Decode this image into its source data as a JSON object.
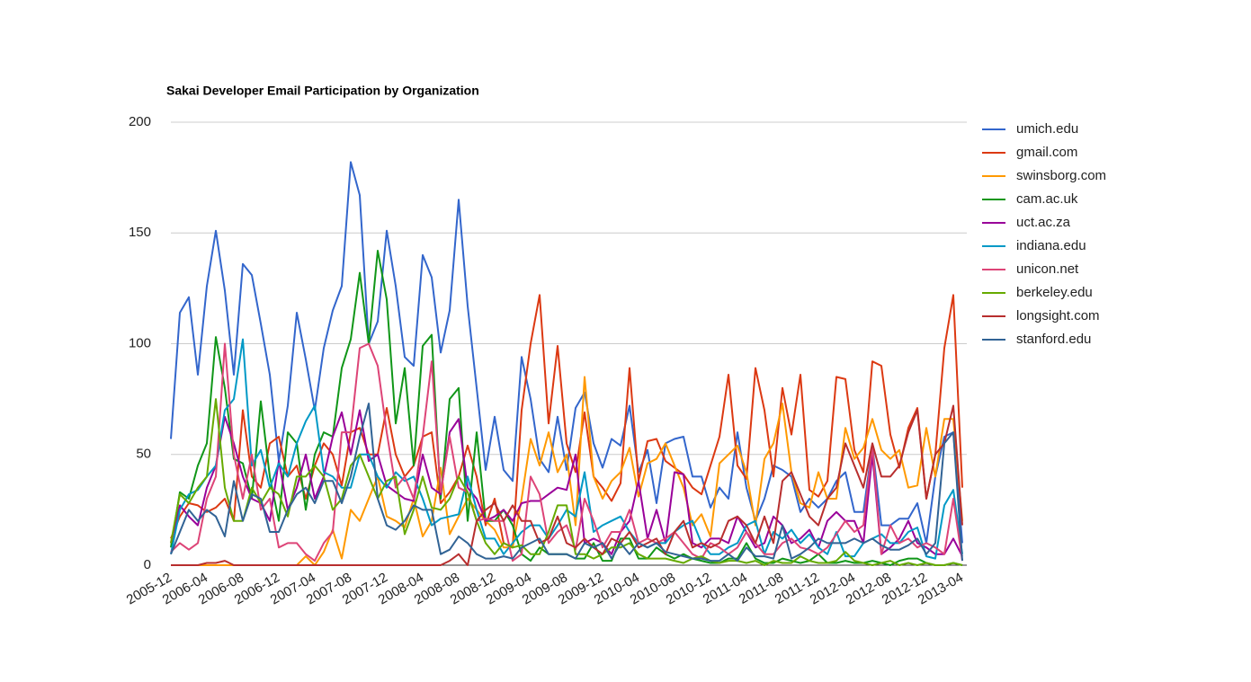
{
  "chart_data": {
    "type": "line",
    "title": "Sakai Developer Email Participation by Organization",
    "categories": [
      "2005-12",
      null,
      null,
      null,
      "2006-04",
      null,
      null,
      null,
      "2006-08",
      null,
      null,
      null,
      "2006-12",
      null,
      null,
      null,
      "2007-04",
      null,
      null,
      null,
      "2007-08",
      null,
      null,
      null,
      "2007-12",
      null,
      null,
      null,
      "2008-04",
      null,
      null,
      null,
      "2008-08",
      null,
      null,
      null,
      "2008-12",
      null,
      null,
      null,
      "2009-04",
      null,
      null,
      null,
      "2009-08",
      null,
      null,
      null,
      "2009-12",
      null,
      null,
      null,
      "2010-04",
      null,
      null,
      null,
      "2010-08",
      null,
      null,
      null,
      "2010-12",
      null,
      null,
      null,
      "2011-04",
      null,
      null,
      null,
      "2011-08",
      null,
      null,
      null,
      "2011-12",
      null,
      null,
      null,
      "2012-04",
      null,
      null,
      null,
      "2012-08",
      null,
      null,
      null,
      "2012-12",
      null,
      null,
      null,
      "2013-04"
    ],
    "ylim": [
      0,
      200
    ],
    "yticks": [
      0,
      50,
      100,
      150,
      200
    ],
    "grid": true,
    "legend": "right",
    "series": [
      {
        "name": "umich.edu",
        "color": "#3366cc",
        "values": [
          57,
          114,
          121,
          86,
          126,
          151,
          124,
          86,
          136,
          131,
          109,
          86,
          47,
          72,
          114,
          93,
          70,
          98,
          115,
          126,
          182,
          167,
          100,
          110,
          151,
          126,
          94,
          90,
          140,
          130,
          96,
          115,
          165,
          117,
          80,
          43,
          67,
          43,
          38,
          94,
          75,
          48,
          42,
          67,
          43,
          71,
          78,
          55,
          44,
          57,
          54,
          72,
          42,
          52,
          28,
          55,
          57,
          58,
          40,
          40,
          26,
          35,
          30,
          60,
          35,
          20,
          30,
          45,
          43,
          40,
          24,
          30,
          26,
          30,
          38,
          42,
          24,
          24,
          54,
          18,
          18,
          21,
          21,
          28,
          10,
          40,
          58,
          60,
          10
        ]
      },
      {
        "name": "gmail.com",
        "color": "#dc3912",
        "values": [
          12,
          22,
          28,
          27,
          24,
          26,
          30,
          20,
          70,
          40,
          35,
          55,
          58,
          40,
          45,
          30,
          45,
          55,
          50,
          36,
          60,
          62,
          50,
          50,
          71,
          50,
          40,
          45,
          58,
          60,
          28,
          33,
          40,
          54,
          40,
          18,
          30,
          10,
          8,
          70,
          100,
          122,
          64,
          99,
          55,
          42,
          69,
          40,
          35,
          29,
          37,
          89,
          38,
          56,
          57,
          47,
          44,
          41,
          35,
          32,
          45,
          58,
          86,
          45,
          39,
          89,
          70,
          40,
          80,
          59,
          86,
          34,
          31,
          38,
          85,
          84,
          52,
          42,
          92,
          90,
          59,
          44,
          62,
          71,
          30,
          50,
          98,
          122,
          35
        ]
      },
      {
        "name": "swinsborg.com",
        "color": "#ff9900",
        "values": [
          0,
          0,
          0,
          0,
          0,
          0,
          0,
          0,
          0,
          0,
          0,
          0,
          0,
          0,
          0,
          4,
          0,
          6,
          16,
          3,
          25,
          20,
          30,
          40,
          22,
          20,
          17,
          30,
          13,
          20,
          44,
          14,
          22,
          30,
          25,
          20,
          16,
          8,
          8,
          30,
          57,
          45,
          60,
          42,
          50,
          18,
          85,
          40,
          30,
          38,
          42,
          53,
          31,
          46,
          48,
          55,
          45,
          35,
          18,
          23,
          13,
          46,
          50,
          54,
          42,
          18,
          48,
          55,
          73,
          42,
          28,
          26,
          42,
          30,
          30,
          62,
          48,
          53,
          66,
          52,
          48,
          52,
          35,
          36,
          62,
          40,
          66,
          66,
          20
        ]
      },
      {
        "name": "cam.ac.uk",
        "color": "#109618",
        "values": [
          8,
          33,
          30,
          45,
          55,
          103,
          80,
          48,
          46,
          30,
          74,
          40,
          20,
          60,
          55,
          25,
          50,
          60,
          58,
          89,
          102,
          132,
          100,
          142,
          120,
          64,
          89,
          45,
          99,
          104,
          30,
          75,
          80,
          20,
          60,
          20,
          20,
          25,
          18,
          5,
          2,
          8,
          5,
          5,
          5,
          3,
          3,
          10,
          2,
          2,
          12,
          12,
          3,
          3,
          8,
          5,
          3,
          5,
          3,
          2,
          1,
          1,
          3,
          3,
          10,
          3,
          1,
          1,
          3,
          2,
          1,
          2,
          5,
          1,
          1,
          2,
          1,
          1,
          2,
          1,
          0,
          2,
          3,
          3,
          1,
          0,
          0,
          1,
          0
        ]
      },
      {
        "name": "uct.ac.za",
        "color": "#990099",
        "values": [
          10,
          27,
          22,
          18,
          35,
          45,
          67,
          55,
          40,
          30,
          28,
          20,
          47,
          25,
          35,
          50,
          30,
          40,
          58,
          69,
          50,
          70,
          47,
          50,
          36,
          33,
          30,
          29,
          50,
          35,
          32,
          60,
          66,
          35,
          30,
          20,
          22,
          25,
          20,
          28,
          29,
          29,
          32,
          35,
          34,
          50,
          10,
          12,
          10,
          5,
          15,
          20,
          38,
          12,
          25,
          10,
          42,
          41,
          10,
          8,
          12,
          12,
          10,
          22,
          15,
          8,
          10,
          22,
          18,
          10,
          12,
          16,
          8,
          20,
          24,
          20,
          20,
          10,
          50,
          5,
          8,
          12,
          20,
          10,
          8,
          5,
          5,
          12,
          4
        ]
      },
      {
        "name": "indiana.edu",
        "color": "#0099c6",
        "values": [
          5,
          25,
          32,
          34,
          40,
          45,
          70,
          75,
          102,
          45,
          52,
          35,
          46,
          40,
          55,
          65,
          72,
          42,
          40,
          35,
          35,
          50,
          50,
          40,
          35,
          42,
          38,
          40,
          30,
          18,
          21,
          22,
          23,
          40,
          25,
          12,
          12,
          5,
          10,
          15,
          18,
          18,
          12,
          18,
          25,
          22,
          42,
          15,
          18,
          20,
          22,
          15,
          10,
          8,
          10,
          10,
          15,
          18,
          20,
          10,
          5,
          5,
          8,
          10,
          18,
          20,
          5,
          15,
          12,
          16,
          10,
          14,
          8,
          5,
          15,
          4,
          4,
          10,
          12,
          14,
          10,
          10,
          15,
          17,
          4,
          3,
          27,
          34,
          5
        ]
      },
      {
        "name": "unicon.net",
        "color": "#dd4477",
        "values": [
          6,
          10,
          7,
          10,
          30,
          40,
          100,
          50,
          30,
          50,
          25,
          30,
          8,
          10,
          10,
          5,
          2,
          10,
          15,
          60,
          60,
          98,
          100,
          90,
          60,
          35,
          40,
          30,
          58,
          92,
          33,
          58,
          35,
          33,
          20,
          21,
          20,
          20,
          2,
          5,
          40,
          32,
          10,
          15,
          18,
          7,
          30,
          20,
          8,
          15,
          15,
          25,
          10,
          12,
          10,
          12,
          15,
          10,
          5,
          3,
          10,
          8,
          5,
          8,
          15,
          10,
          5,
          5,
          10,
          12,
          8,
          7,
          5,
          8,
          14,
          20,
          15,
          18,
          54,
          5,
          18,
          10,
          12,
          8,
          10,
          8,
          5,
          30,
          2
        ]
      },
      {
        "name": "berkeley.edu",
        "color": "#66aa00",
        "values": [
          10,
          32,
          28,
          35,
          40,
          75,
          35,
          20,
          20,
          35,
          28,
          35,
          32,
          22,
          40,
          40,
          45,
          40,
          25,
          30,
          45,
          50,
          40,
          30,
          38,
          40,
          14,
          25,
          40,
          26,
          25,
          30,
          40,
          33,
          20,
          10,
          5,
          10,
          8,
          9,
          5,
          5,
          15,
          27,
          27,
          5,
          5,
          3,
          5,
          8,
          8,
          10,
          5,
          3,
          3,
          3,
          2,
          1,
          3,
          4,
          2,
          1,
          2,
          2,
          1,
          2,
          0,
          2,
          1,
          1,
          4,
          2,
          1,
          1,
          2,
          6,
          2,
          1,
          0,
          1,
          2,
          0,
          1,
          0,
          1,
          0,
          0,
          1,
          0
        ]
      },
      {
        "name": "longsight.com",
        "color": "#b82e2e",
        "values": [
          0,
          0,
          0,
          0,
          1,
          1,
          2,
          0,
          0,
          0,
          0,
          0,
          0,
          0,
          0,
          0,
          0,
          0,
          0,
          0,
          0,
          0,
          0,
          0,
          0,
          0,
          0,
          0,
          0,
          0,
          0,
          2,
          5,
          0,
          20,
          25,
          28,
          20,
          27,
          20,
          20,
          10,
          12,
          22,
          10,
          8,
          12,
          8,
          5,
          12,
          10,
          15,
          8,
          10,
          12,
          5,
          15,
          20,
          8,
          10,
          8,
          10,
          20,
          22,
          18,
          10,
          22,
          10,
          38,
          42,
          32,
          22,
          18,
          30,
          35,
          55,
          45,
          35,
          55,
          40,
          40,
          45,
          60,
          70,
          30,
          50,
          55,
          72,
          18
        ]
      },
      {
        "name": "stanford.edu",
        "color": "#316395",
        "values": [
          5,
          15,
          25,
          20,
          25,
          22,
          13,
          38,
          20,
          32,
          30,
          15,
          15,
          25,
          32,
          35,
          28,
          38,
          38,
          28,
          40,
          58,
          73,
          30,
          18,
          16,
          20,
          27,
          25,
          25,
          5,
          7,
          13,
          10,
          5,
          3,
          3,
          4,
          3,
          8,
          10,
          12,
          5,
          5,
          5,
          3,
          10,
          8,
          10,
          3,
          10,
          5,
          10,
          8,
          10,
          6,
          5,
          4,
          3,
          3,
          2,
          2,
          5,
          2,
          8,
          4,
          4,
          3,
          18,
          3,
          5,
          8,
          12,
          10,
          10,
          10,
          12,
          10,
          12,
          9,
          7,
          7,
          9,
          12,
          5,
          10,
          55,
          60,
          2
        ]
      }
    ]
  }
}
